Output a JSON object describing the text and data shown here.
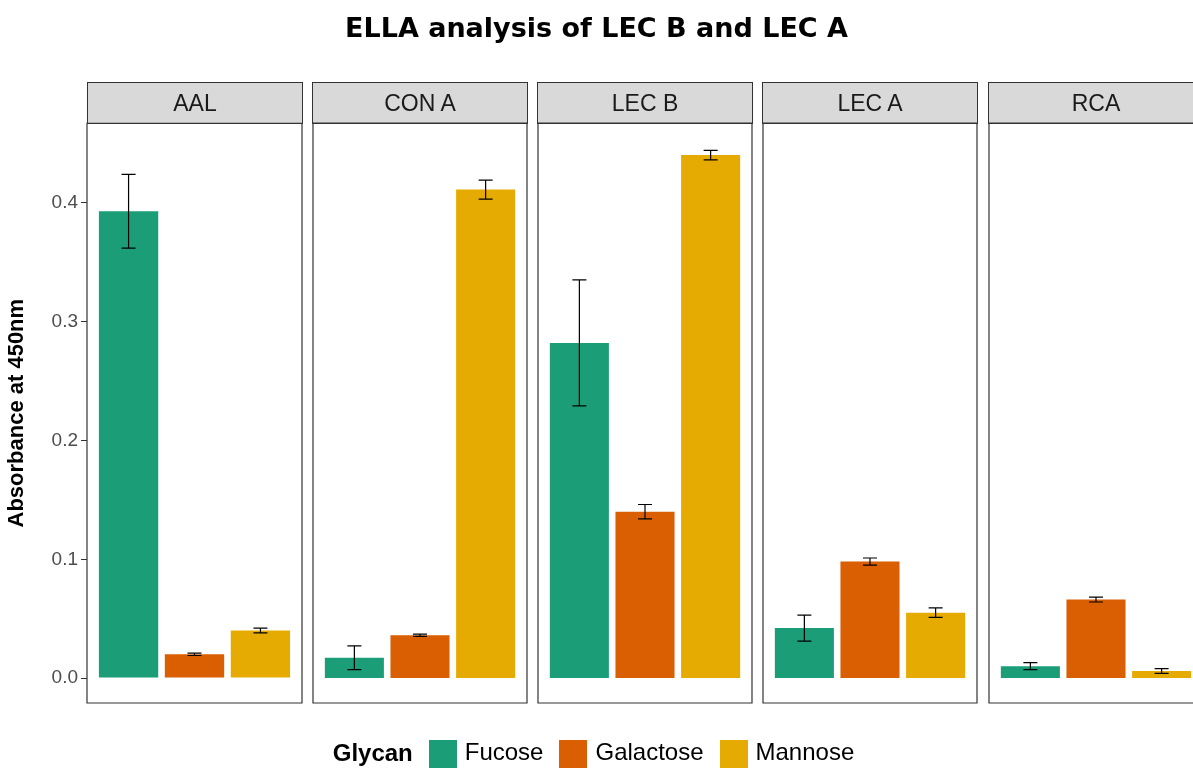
{
  "chart_data": [
    {
      "type": "bar",
      "ylabel": "Absorbance at 450nm",
      "legend_title": "Glycan",
      "legend": "bottom",
      "categories": [
        "AAL"
      ],
      "ylim": [
        -0.021,
        0.467
      ],
      "yticks": [
        {
          "value": 0,
          "label": "0.0"
        },
        0.1,
        0.2,
        0.3,
        0.4
      ],
      "grid": false,
      "series": [
        {
          "name": "Fucose",
          "color": "#1b9e77",
          "values": [
            0.393
          ],
          "errors": [
            0.031
          ]
        },
        {
          "name": "Galactose",
          "color": "#d95f02",
          "values": [
            0.02
          ],
          "errors": [
            0.001
          ]
        },
        {
          "name": "Mannose",
          "color": "#e6ab02",
          "values": [
            0.04
          ],
          "errors": [
            0.002
          ]
        }
      ]
    },
    {
      "type": "bar",
      "categories": [
        "CON A"
      ],
      "ylim": [
        -0.021,
        0.467
      ],
      "tick_labels": false,
      "grid": false,
      "series": [
        {
          "color": "#1b9e77",
          "values": [
            0.017
          ],
          "errors": [
            0.01
          ]
        },
        {
          "color": "#d95f02",
          "values": [
            0.036
          ],
          "errors": [
            0.001
          ]
        },
        {
          "color": "#e6ab02",
          "values": [
            0.411
          ],
          "errors": [
            0.008
          ]
        }
      ]
    },
    {
      "type": "bar",
      "title": "ELLA analysis of LEC B and LEC A",
      "categories": [
        "LEC B"
      ],
      "ylim": [
        -0.021,
        0.467
      ],
      "tick_labels": false,
      "grid": false,
      "series": [
        {
          "color": "#1b9e77",
          "values": [
            0.282
          ],
          "errors": [
            0.053
          ]
        },
        {
          "color": "#d95f02",
          "values": [
            0.14
          ],
          "errors": [
            0.006
          ]
        },
        {
          "color": "#e6ab02",
          "values": [
            0.44
          ],
          "errors": [
            0.004
          ]
        }
      ]
    },
    {
      "type": "bar",
      "categories": [
        "LEC A"
      ],
      "ylim": [
        -0.021,
        0.467
      ],
      "tick_labels": false,
      "grid": false,
      "series": [
        {
          "color": "#1b9e77",
          "values": [
            0.042
          ],
          "errors": [
            0.011
          ]
        },
        {
          "color": "#d95f02",
          "values": [
            0.098
          ],
          "errors": [
            0.003
          ]
        },
        {
          "color": "#e6ab02",
          "values": [
            0.055
          ],
          "errors": [
            0.004
          ]
        }
      ]
    },
    {
      "type": "bar",
      "categories": [
        "RCA"
      ],
      "ylim": [
        -0.021,
        0.467
      ],
      "tick_labels": false,
      "grid": false,
      "series": [
        {
          "color": "#1b9e77",
          "values": [
            0.01
          ],
          "errors": [
            0.003
          ]
        },
        {
          "color": "#d95f02",
          "values": [
            0.066
          ],
          "errors": [
            0.002
          ]
        },
        {
          "color": "#e6ab02",
          "values": [
            0.006
          ],
          "errors": [
            0.002
          ]
        }
      ]
    }
  ]
}
